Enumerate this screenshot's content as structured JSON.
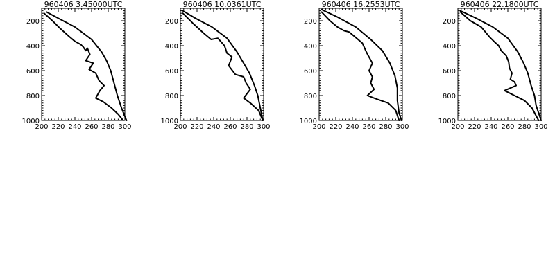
{
  "chart_data": [
    {
      "type": "line",
      "title": "960406   3.45000UTC",
      "xlim": [
        200,
        300
      ],
      "ylim": [
        1000,
        100
      ],
      "x_ticks": [
        "200",
        "220",
        "240",
        "260",
        "280",
        "300"
      ],
      "y_ticks": [
        "200",
        "400",
        "600",
        "800",
        "1000"
      ],
      "series": [
        {
          "points": [
            [
              206,
              130
            ],
            [
              220,
              180
            ],
            [
              240,
              250
            ],
            [
              260,
              350
            ],
            [
              272,
              450
            ],
            [
              278,
              520
            ],
            [
              283,
              600
            ],
            [
              287,
              700
            ],
            [
              291,
              800
            ],
            [
              296,
              900
            ],
            [
              302,
              1000
            ]
          ]
        },
        {
          "points": [
            [
              203,
              140
            ],
            [
              213,
              200
            ],
            [
              222,
              260
            ],
            [
              232,
              320
            ],
            [
              240,
              365
            ],
            [
              247,
              390
            ],
            [
              250,
              410
            ],
            [
              253,
              440
            ],
            [
              255,
              420
            ],
            [
              258,
              470
            ],
            [
              253,
              520
            ],
            [
              262,
              540
            ],
            [
              257,
              590
            ],
            [
              265,
              620
            ],
            [
              269,
              680
            ],
            [
              275,
              720
            ],
            [
              270,
              760
            ],
            [
              265,
              820
            ],
            [
              274,
              850
            ],
            [
              284,
              900
            ],
            [
              292,
              950
            ],
            [
              298,
              1000
            ]
          ]
        }
      ]
    },
    {
      "type": "line",
      "title": "960406  10.0361UTC",
      "xlim": [
        200,
        300
      ],
      "ylim": [
        1000,
        100
      ],
      "x_ticks": [
        "200",
        "220",
        "240",
        "260",
        "280",
        "300"
      ],
      "y_ticks": [
        "200",
        "400",
        "600",
        "800",
        "1000"
      ],
      "series": [
        {
          "points": [
            [
              203,
              120
            ],
            [
              218,
              180
            ],
            [
              238,
              250
            ],
            [
              256,
              340
            ],
            [
              268,
              450
            ],
            [
              276,
              540
            ],
            [
              283,
              620
            ],
            [
              289,
              720
            ],
            [
              293,
              800
            ],
            [
              296,
              900
            ],
            [
              299,
              1000
            ]
          ]
        },
        {
          "points": [
            [
              203,
              140
            ],
            [
              215,
              220
            ],
            [
              228,
              300
            ],
            [
              237,
              350
            ],
            [
              245,
              340
            ],
            [
              253,
              400
            ],
            [
              256,
              460
            ],
            [
              262,
              490
            ],
            [
              258,
              560
            ],
            [
              266,
              630
            ],
            [
              276,
              650
            ],
            [
              279,
              700
            ],
            [
              284,
              750
            ],
            [
              276,
              820
            ],
            [
              284,
              860
            ],
            [
              294,
              920
            ],
            [
              299,
              1000
            ]
          ]
        }
      ]
    },
    {
      "type": "line",
      "title": "960406  16.2553UTC",
      "xlim": [
        200,
        300
      ],
      "ylim": [
        1000,
        100
      ],
      "x_ticks": [
        "200",
        "220",
        "240",
        "260",
        "280",
        "300"
      ],
      "y_ticks": [
        "200",
        "400",
        "600",
        "800",
        "1000"
      ],
      "series": [
        {
          "points": [
            [
              203,
              110
            ],
            [
              222,
              170
            ],
            [
              244,
              250
            ],
            [
              262,
              350
            ],
            [
              276,
              440
            ],
            [
              285,
              540
            ],
            [
              291,
              640
            ],
            [
              294,
              740
            ],
            [
              294,
              840
            ],
            [
              296,
              940
            ],
            [
              299,
              1000
            ]
          ]
        },
        {
          "points": [
            [
              203,
              130
            ],
            [
              213,
              200
            ],
            [
              222,
              250
            ],
            [
              230,
              280
            ],
            [
              236,
              290
            ],
            [
              245,
              340
            ],
            [
              252,
              380
            ],
            [
              256,
              440
            ],
            [
              259,
              480
            ],
            [
              264,
              540
            ],
            [
              260,
              600
            ],
            [
              264,
              650
            ],
            [
              262,
              700
            ],
            [
              266,
              750
            ],
            [
              258,
              800
            ],
            [
              270,
              830
            ],
            [
              283,
              860
            ],
            [
              292,
              920
            ],
            [
              296,
              1000
            ]
          ]
        }
      ]
    },
    {
      "type": "line",
      "title": "960406  22.1800UTC",
      "xlim": [
        200,
        300
      ],
      "ylim": [
        1000,
        100
      ],
      "x_ticks": [
        "200",
        "220",
        "240",
        "260",
        "280",
        "300"
      ],
      "y_ticks": [
        "200",
        "400",
        "600",
        "800",
        "1000"
      ],
      "series": [
        {
          "points": [
            [
              203,
              120
            ],
            [
              222,
              180
            ],
            [
              242,
              250
            ],
            [
              260,
              340
            ],
            [
              272,
              450
            ],
            [
              279,
              540
            ],
            [
              284,
              620
            ],
            [
              288,
              720
            ],
            [
              292,
              800
            ],
            [
              294,
              880
            ],
            [
              298,
              960
            ],
            [
              300,
              1000
            ]
          ]
        },
        {
          "points": [
            [
              203,
              130
            ],
            [
              215,
              200
            ],
            [
              228,
              250
            ],
            [
              238,
              330
            ],
            [
              244,
              370
            ],
            [
              249,
              400
            ],
            [
              252,
              440
            ],
            [
              258,
              480
            ],
            [
              261,
              530
            ],
            [
              262,
              580
            ],
            [
              265,
              620
            ],
            [
              263,
              670
            ],
            [
              268,
              690
            ],
            [
              270,
              720
            ],
            [
              256,
              760
            ],
            [
              268,
              800
            ],
            [
              280,
              840
            ],
            [
              289,
              900
            ],
            [
              297,
              1000
            ]
          ]
        }
      ]
    }
  ]
}
